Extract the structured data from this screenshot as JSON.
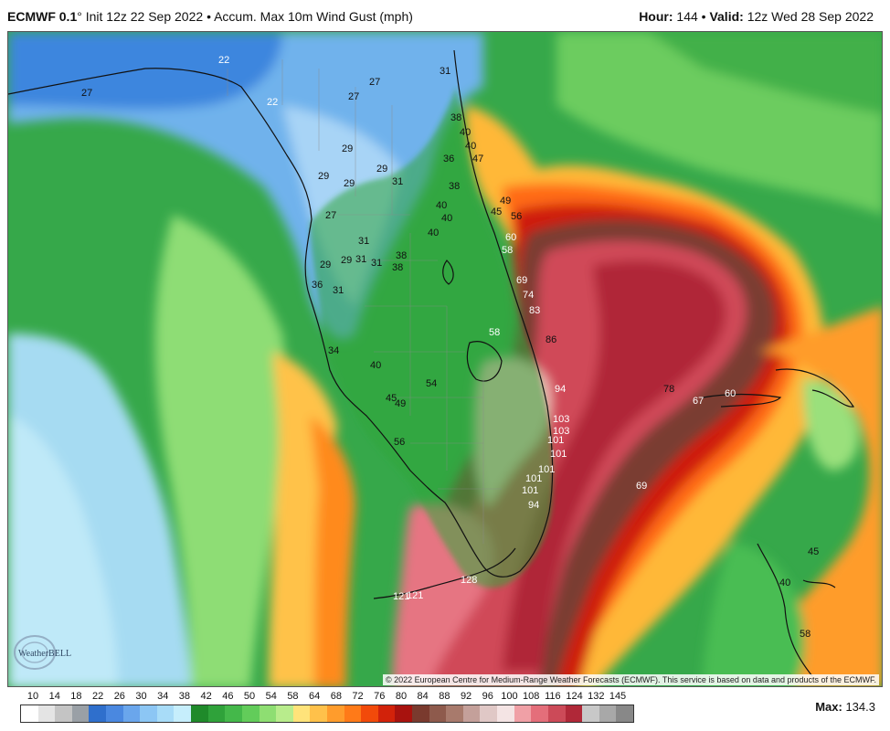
{
  "header": {
    "model": "ECMWF 0.1",
    "degree": "°",
    "init": "Init 12z 22 Sep 2022",
    "product": "Accum. Max 10m Wind Gust (mph)",
    "hour_label": "Hour:",
    "hour_value": "144",
    "valid_label": "Valid:",
    "valid_value": "12z Wed 28 Sep 2022"
  },
  "map_labels": [
    {
      "text": "22",
      "color": "#fff"
    },
    {
      "text": "27",
      "color": "#111"
    },
    {
      "text": "22",
      "color": "#fff"
    },
    {
      "text": "27",
      "color": "#111"
    },
    {
      "text": "27",
      "color": "#111"
    },
    {
      "text": "31",
      "color": "#111"
    },
    {
      "text": "38",
      "color": "#111"
    },
    {
      "text": "40",
      "color": "#111"
    },
    {
      "text": "40",
      "color": "#111"
    },
    {
      "text": "47",
      "color": "#111"
    },
    {
      "text": "36",
      "color": "#111"
    },
    {
      "text": "29",
      "color": "#111"
    },
    {
      "text": "29",
      "color": "#111"
    },
    {
      "text": "29",
      "color": "#111"
    },
    {
      "text": "31",
      "color": "#111"
    },
    {
      "text": "29",
      "color": "#111"
    },
    {
      "text": "38",
      "color": "#111"
    },
    {
      "text": "27",
      "color": "#111"
    },
    {
      "text": "40",
      "color": "#111"
    },
    {
      "text": "40",
      "color": "#111"
    },
    {
      "text": "40",
      "color": "#111"
    },
    {
      "text": "49",
      "color": "#111"
    },
    {
      "text": "45",
      "color": "#111"
    },
    {
      "text": "56",
      "color": "#111"
    },
    {
      "text": "31",
      "color": "#111"
    },
    {
      "text": "60",
      "color": "#fff"
    },
    {
      "text": "58",
      "color": "#fff"
    },
    {
      "text": "29",
      "color": "#111"
    },
    {
      "text": "29",
      "color": "#111"
    },
    {
      "text": "31",
      "color": "#111"
    },
    {
      "text": "31",
      "color": "#111"
    },
    {
      "text": "38",
      "color": "#111"
    },
    {
      "text": "38",
      "color": "#111"
    },
    {
      "text": "36",
      "color": "#111"
    },
    {
      "text": "31",
      "color": "#111"
    },
    {
      "text": "69",
      "color": "#fff"
    },
    {
      "text": "74",
      "color": "#fff"
    },
    {
      "text": "83",
      "color": "#fff"
    },
    {
      "text": "58",
      "color": "#fff"
    },
    {
      "text": "86",
      "color": "#111"
    },
    {
      "text": "34",
      "color": "#111"
    },
    {
      "text": "40",
      "color": "#111"
    },
    {
      "text": "54",
      "color": "#111"
    },
    {
      "text": "94",
      "color": "#fff"
    },
    {
      "text": "78",
      "color": "#111"
    },
    {
      "text": "67",
      "color": "#fff"
    },
    {
      "text": "60",
      "color": "#fff"
    },
    {
      "text": "45",
      "color": "#111"
    },
    {
      "text": "49",
      "color": "#111"
    },
    {
      "text": "103",
      "color": "#fff"
    },
    {
      "text": "103",
      "color": "#fff"
    },
    {
      "text": "101",
      "color": "#fff"
    },
    {
      "text": "101",
      "color": "#fff"
    },
    {
      "text": "56",
      "color": "#111"
    },
    {
      "text": "101",
      "color": "#fff"
    },
    {
      "text": "101",
      "color": "#fff"
    },
    {
      "text": "101",
      "color": "#fff"
    },
    {
      "text": "69",
      "color": "#fff"
    },
    {
      "text": "94",
      "color": "#fff"
    },
    {
      "text": "45",
      "color": "#111"
    },
    {
      "text": "40",
      "color": "#111"
    },
    {
      "text": "128",
      "color": "#fff"
    },
    {
      "text": "121",
      "color": "#fff"
    },
    {
      "text": "121",
      "color": "#fff"
    },
    {
      "text": "58",
      "color": "#111"
    }
  ],
  "copyright": "© 2022 European Centre for Medium-Range Weather Forecasts (ECMWF). This service is based on data and products of the ECMWF.",
  "logo_text": "WeatherBELL",
  "colorbar": {
    "ticks": [
      "10",
      "14",
      "18",
      "22",
      "26",
      "30",
      "34",
      "38",
      "42",
      "46",
      "50",
      "54",
      "58",
      "64",
      "68",
      "72",
      "76",
      "80",
      "84",
      "88",
      "92",
      "96",
      "100",
      "108",
      "116",
      "124",
      "132",
      "145"
    ],
    "colors": [
      "#ffffff",
      "#e4e4e4",
      "#c4c4c4",
      "#9aa0a6",
      "#2f6fcc",
      "#4a88e0",
      "#6aa6ec",
      "#8cc6f4",
      "#a8dcf8",
      "#c6eefc",
      "#1f8a2a",
      "#2fa23a",
      "#44b84a",
      "#62cc5a",
      "#8ede72",
      "#b8ec8c",
      "#ffe37a",
      "#ffc14a",
      "#ff9c2c",
      "#ff7a18",
      "#f24a0a",
      "#d2220a",
      "#a8120e",
      "#7a3a2e",
      "#8e5a4c",
      "#a87a6c",
      "#c4a09a",
      "#e0c8c6",
      "#f4e4e4",
      "#f0a0a6",
      "#e46e7a",
      "#cc4a58",
      "#b02838",
      "#c8c8c8",
      "#a8a8a8",
      "#888888"
    ],
    "max_label": "Max:",
    "max_value": "134.3"
  }
}
